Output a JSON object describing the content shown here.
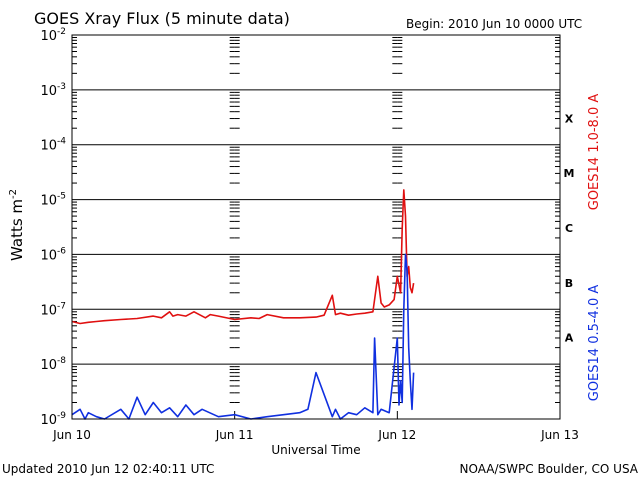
{
  "chart_data": {
    "type": "line",
    "title": "GOES Xray Flux (5 minute data)",
    "begin": "Begin:  2010 Jun 10 0000 UTC",
    "ylabel": "Watts m",
    "ylabel_sup": "-2",
    "xlabel": "Universal Time",
    "yscale": "log",
    "ylim": [
      1e-09,
      0.01
    ],
    "xlim": [
      0,
      3
    ],
    "grid": true,
    "x_ticks": [
      {
        "value": 0,
        "label": "Jun 10"
      },
      {
        "value": 1,
        "label": "Jun 11"
      },
      {
        "value": 2,
        "label": "Jun 12"
      },
      {
        "value": 3,
        "label": "Jun 13"
      }
    ],
    "y_ticks": [
      {
        "exp": -9,
        "base": "10",
        "sup": "-9"
      },
      {
        "exp": -8,
        "base": "10",
        "sup": "-8"
      },
      {
        "exp": -7,
        "base": "10",
        "sup": "-7"
      },
      {
        "exp": -6,
        "base": "10",
        "sup": "-6"
      },
      {
        "exp": -5,
        "base": "10",
        "sup": "-5"
      },
      {
        "exp": -4,
        "base": "10",
        "sup": "-4"
      },
      {
        "exp": -3,
        "base": "10",
        "sup": "-3"
      },
      {
        "exp": -2,
        "base": "10",
        "sup": "-2"
      }
    ],
    "flare_classes": [
      {
        "label": "A",
        "exp": -8
      },
      {
        "label": "B",
        "exp": -7
      },
      {
        "label": "C",
        "exp": -6
      },
      {
        "label": "M",
        "exp": -5
      },
      {
        "label": "X",
        "exp": -4
      }
    ],
    "series": [
      {
        "name": "GOES14 1.0-8.0 A",
        "color": "#e01010",
        "x": [
          0,
          0.05,
          0.1,
          0.15,
          0.2,
          0.3,
          0.4,
          0.5,
          0.55,
          0.6,
          0.62,
          0.65,
          0.7,
          0.75,
          0.8,
          0.82,
          0.85,
          0.9,
          1.0,
          1.1,
          1.15,
          1.2,
          1.3,
          1.4,
          1.5,
          1.55,
          1.6,
          1.62,
          1.65,
          1.7,
          1.75,
          1.8,
          1.85,
          1.88,
          1.9,
          1.92,
          1.95,
          1.98,
          2.0,
          2.02,
          2.03,
          2.04,
          2.05,
          2.06,
          2.07,
          2.08,
          2.09,
          2.1
        ],
        "y": [
          6e-08,
          5.5e-08,
          5.8e-08,
          6e-08,
          6.2e-08,
          6.5e-08,
          6.8e-08,
          7.5e-08,
          7e-08,
          9e-08,
          7.5e-08,
          8e-08,
          7.5e-08,
          9e-08,
          7.5e-08,
          7e-08,
          8e-08,
          7.5e-08,
          6.5e-08,
          7e-08,
          6.8e-08,
          8e-08,
          7e-08,
          7e-08,
          7.2e-08,
          7.8e-08,
          1.8e-07,
          8e-08,
          8.5e-08,
          7.8e-08,
          8.2e-08,
          8.5e-08,
          9e-08,
          4e-07,
          1.3e-07,
          1.1e-07,
          1.2e-07,
          1.5e-07,
          4e-07,
          2e-07,
          3e-06,
          1.5e-05,
          5e-06,
          4e-07,
          6e-07,
          2.5e-07,
          2e-07,
          3e-07
        ]
      },
      {
        "name": "GOES14 0.5-4.0 A",
        "color": "#1030e0",
        "x": [
          0,
          0.05,
          0.08,
          0.1,
          0.15,
          0.2,
          0.3,
          0.35,
          0.4,
          0.45,
          0.5,
          0.55,
          0.6,
          0.65,
          0.7,
          0.75,
          0.8,
          0.9,
          1.0,
          1.1,
          1.2,
          1.3,
          1.4,
          1.45,
          1.5,
          1.6,
          1.62,
          1.65,
          1.7,
          1.75,
          1.8,
          1.85,
          1.86,
          1.88,
          1.9,
          1.95,
          2.0,
          2.01,
          2.02,
          2.03,
          2.04,
          2.05,
          2.06,
          2.07,
          2.08,
          2.09,
          2.1
        ],
        "y": [
          1.2e-09,
          1.5e-09,
          1e-09,
          1.3e-09,
          1.1e-09,
          1e-09,
          1.5e-09,
          1e-09,
          2.5e-09,
          1.2e-09,
          2e-09,
          1.3e-09,
          1.6e-09,
          1.1e-09,
          1.8e-09,
          1.2e-09,
          1.5e-09,
          1.1e-09,
          1.2e-09,
          1e-09,
          1.1e-09,
          1.2e-09,
          1.3e-09,
          1.5e-09,
          7e-09,
          1.1e-09,
          1.5e-09,
          1e-09,
          1.3e-09,
          1.2e-09,
          1.6e-09,
          1.3e-09,
          3e-08,
          1.2e-09,
          1.5e-09,
          1.3e-09,
          3e-08,
          1.8e-09,
          5e-09,
          2e-09,
          1e-07,
          1e-06,
          5e-07,
          2e-08,
          5e-09,
          1.5e-09,
          7e-09
        ]
      }
    ]
  },
  "footer": {
    "updated": "Updated 2010 Jun 12 02:40:11 UTC",
    "credit": "NOAA/SWPC Boulder, CO USA"
  }
}
